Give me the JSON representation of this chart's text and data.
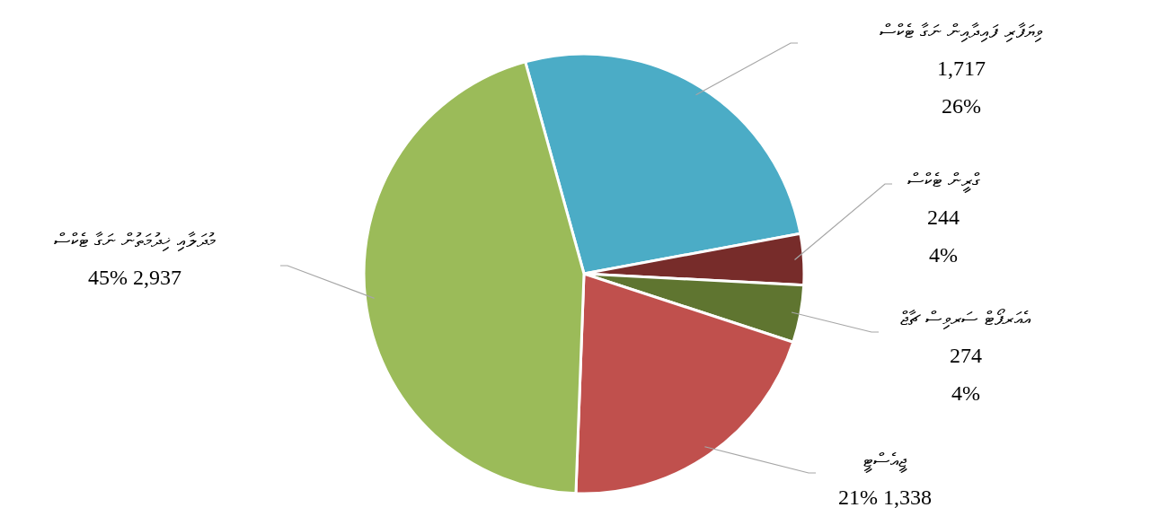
{
  "chart_data": {
    "type": "pie",
    "categories": [
      "ވިޔަފާރި ފައިދާއިން ނަގާ ޓެކްސް",
      "ގްރީން ޓެކްސް",
      "އެއަރޕޯޓް ސަރވިސް ޗާޖް",
      "ޖީއެސްޓީ",
      "މުދަލާއި ޚިދުމަތުން ނަގާ ޓެކްސް"
    ],
    "values": [
      1717,
      244,
      274,
      1338,
      2937
    ],
    "colors": [
      "#4bacc6",
      "#772c2a",
      "#5f7530",
      "#c0504d",
      "#9bbb59"
    ],
    "data_labels": true,
    "value_labels": [
      "1,717\n26%",
      "244\n4%",
      "274\n4%",
      "21%  1,338",
      "45%  2,937"
    ]
  }
}
